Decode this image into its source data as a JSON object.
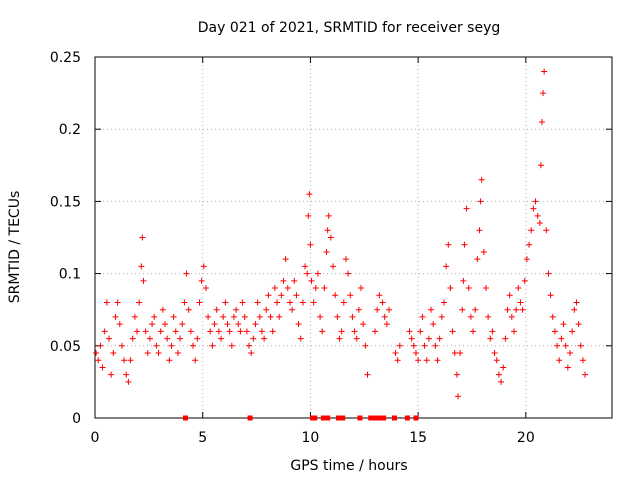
{
  "chart_data": {
    "type": "scatter",
    "title": "Day 021 of 2021, SRMTID for receiver seyg",
    "xlabel": "GPS time / hours",
    "ylabel": "SRMTID / TECUs",
    "xlim": [
      0,
      24
    ],
    "ylim": [
      0,
      0.25
    ],
    "xticks": [
      0,
      5,
      10,
      15,
      20
    ],
    "xtick_labels": [
      "0",
      "5",
      "10",
      "15",
      "20"
    ],
    "yticks": [
      0,
      0.05,
      0.1,
      0.15,
      0.2,
      0.25
    ],
    "ytick_labels": [
      "0",
      "0.05",
      "0.1",
      "0.15",
      "0.2",
      "0.25"
    ],
    "grid": true,
    "marker": "+",
    "color": "#ff0000",
    "series": [
      {
        "name": "SRMTID",
        "points": [
          [
            0.05,
            0.045
          ],
          [
            0.15,
            0.04
          ],
          [
            0.25,
            0.05
          ],
          [
            0.35,
            0.035
          ],
          [
            0.45,
            0.06
          ],
          [
            0.55,
            0.08
          ],
          [
            0.65,
            0.055
          ],
          [
            0.75,
            0.03
          ],
          [
            0.85,
            0.045
          ],
          [
            0.95,
            0.07
          ],
          [
            1.05,
            0.08
          ],
          [
            1.15,
            0.065
          ],
          [
            1.25,
            0.05
          ],
          [
            1.35,
            0.04
          ],
          [
            1.45,
            0.03
          ],
          [
            1.55,
            0.025
          ],
          [
            1.65,
            0.04
          ],
          [
            1.75,
            0.055
          ],
          [
            1.85,
            0.07
          ],
          [
            1.95,
            0.06
          ],
          [
            2.05,
            0.08
          ],
          [
            2.15,
            0.105
          ],
          [
            2.2,
            0.125
          ],
          [
            2.25,
            0.095
          ],
          [
            2.35,
            0.06
          ],
          [
            2.45,
            0.045
          ],
          [
            2.55,
            0.055
          ],
          [
            2.65,
            0.065
          ],
          [
            2.75,
            0.07
          ],
          [
            2.85,
            0.05
          ],
          [
            2.95,
            0.045
          ],
          [
            3.05,
            0.06
          ],
          [
            3.15,
            0.075
          ],
          [
            3.25,
            0.065
          ],
          [
            3.35,
            0.055
          ],
          [
            3.45,
            0.04
          ],
          [
            3.55,
            0.05
          ],
          [
            3.65,
            0.07
          ],
          [
            3.75,
            0.06
          ],
          [
            3.85,
            0.045
          ],
          [
            3.95,
            0.055
          ],
          [
            4.05,
            0.065
          ],
          [
            4.15,
            0.08
          ],
          [
            4.25,
            0.1
          ],
          [
            4.35,
            0.075
          ],
          [
            4.45,
            0.06
          ],
          [
            4.55,
            0.05
          ],
          [
            4.65,
            0.04
          ],
          [
            4.75,
            0.055
          ],
          [
            4.85,
            0.08
          ],
          [
            4.95,
            0.095
          ],
          [
            5.05,
            0.105
          ],
          [
            5.15,
            0.09
          ],
          [
            5.25,
            0.07
          ],
          [
            5.35,
            0.06
          ],
          [
            5.45,
            0.05
          ],
          [
            5.55,
            0.065
          ],
          [
            5.65,
            0.075
          ],
          [
            5.75,
            0.06
          ],
          [
            5.85,
            0.055
          ],
          [
            5.95,
            0.07
          ],
          [
            6.05,
            0.08
          ],
          [
            6.15,
            0.065
          ],
          [
            6.25,
            0.06
          ],
          [
            6.35,
            0.05
          ],
          [
            6.45,
            0.07
          ],
          [
            6.55,
            0.075
          ],
          [
            6.65,
            0.065
          ],
          [
            6.75,
            0.06
          ],
          [
            6.85,
            0.08
          ],
          [
            6.95,
            0.07
          ],
          [
            7.05,
            0.06
          ],
          [
            7.15,
            0.05
          ],
          [
            7.25,
            0.045
          ],
          [
            7.35,
            0.055
          ],
          [
            7.45,
            0.065
          ],
          [
            7.55,
            0.08
          ],
          [
            7.65,
            0.07
          ],
          [
            7.75,
            0.06
          ],
          [
            7.85,
            0.055
          ],
          [
            7.95,
            0.075
          ],
          [
            8.05,
            0.085
          ],
          [
            8.15,
            0.07
          ],
          [
            8.25,
            0.06
          ],
          [
            8.35,
            0.09
          ],
          [
            8.45,
            0.08
          ],
          [
            8.55,
            0.07
          ],
          [
            8.65,
            0.085
          ],
          [
            8.75,
            0.095
          ],
          [
            8.85,
            0.11
          ],
          [
            8.95,
            0.09
          ],
          [
            9.05,
            0.08
          ],
          [
            9.15,
            0.075
          ],
          [
            9.25,
            0.095
          ],
          [
            9.35,
            0.085
          ],
          [
            9.45,
            0.065
          ],
          [
            9.55,
            0.055
          ],
          [
            9.65,
            0.08
          ],
          [
            9.75,
            0.105
          ],
          [
            9.85,
            0.1
          ],
          [
            9.9,
            0.14
          ],
          [
            9.95,
            0.155
          ],
          [
            10.0,
            0.12
          ],
          [
            10.05,
            0.095
          ],
          [
            10.15,
            0.08
          ],
          [
            10.25,
            0.09
          ],
          [
            10.35,
            0.1
          ],
          [
            10.45,
            0.07
          ],
          [
            10.55,
            0.06
          ],
          [
            10.65,
            0.09
          ],
          [
            10.75,
            0.115
          ],
          [
            10.8,
            0.13
          ],
          [
            10.85,
            0.14
          ],
          [
            10.95,
            0.125
          ],
          [
            11.05,
            0.105
          ],
          [
            11.15,
            0.085
          ],
          [
            11.25,
            0.07
          ],
          [
            11.35,
            0.055
          ],
          [
            11.45,
            0.06
          ],
          [
            11.55,
            0.08
          ],
          [
            11.65,
            0.11
          ],
          [
            11.75,
            0.1
          ],
          [
            11.85,
            0.085
          ],
          [
            11.95,
            0.07
          ],
          [
            12.05,
            0.06
          ],
          [
            12.15,
            0.055
          ],
          [
            12.25,
            0.075
          ],
          [
            12.35,
            0.09
          ],
          [
            12.45,
            0.065
          ],
          [
            12.55,
            0.05
          ],
          [
            12.65,
            0.03
          ],
          [
            13.0,
            0.06
          ],
          [
            13.1,
            0.075
          ],
          [
            13.2,
            0.085
          ],
          [
            13.35,
            0.08
          ],
          [
            13.45,
            0.07
          ],
          [
            13.55,
            0.065
          ],
          [
            13.65,
            0.075
          ],
          [
            13.95,
            0.045
          ],
          [
            14.05,
            0.04
          ],
          [
            14.15,
            0.05
          ],
          [
            14.6,
            0.06
          ],
          [
            14.7,
            0.055
          ],
          [
            14.8,
            0.05
          ],
          [
            14.9,
            0.045
          ],
          [
            15.0,
            0.04
          ],
          [
            15.1,
            0.06
          ],
          [
            15.2,
            0.07
          ],
          [
            15.3,
            0.05
          ],
          [
            15.4,
            0.04
          ],
          [
            15.5,
            0.055
          ],
          [
            15.6,
            0.075
          ],
          [
            15.7,
            0.065
          ],
          [
            15.8,
            0.05
          ],
          [
            15.9,
            0.04
          ],
          [
            16.0,
            0.055
          ],
          [
            16.1,
            0.07
          ],
          [
            16.2,
            0.08
          ],
          [
            16.3,
            0.105
          ],
          [
            16.4,
            0.12
          ],
          [
            16.5,
            0.09
          ],
          [
            16.6,
            0.06
          ],
          [
            16.7,
            0.045
          ],
          [
            16.8,
            0.03
          ],
          [
            16.85,
            0.015
          ],
          [
            16.95,
            0.045
          ],
          [
            17.05,
            0.075
          ],
          [
            17.1,
            0.095
          ],
          [
            17.15,
            0.12
          ],
          [
            17.25,
            0.145
          ],
          [
            17.35,
            0.09
          ],
          [
            17.45,
            0.07
          ],
          [
            17.55,
            0.06
          ],
          [
            17.65,
            0.075
          ],
          [
            17.75,
            0.11
          ],
          [
            17.85,
            0.13
          ],
          [
            17.9,
            0.15
          ],
          [
            17.95,
            0.165
          ],
          [
            18.05,
            0.115
          ],
          [
            18.15,
            0.09
          ],
          [
            18.25,
            0.07
          ],
          [
            18.35,
            0.055
          ],
          [
            18.45,
            0.06
          ],
          [
            18.55,
            0.045
          ],
          [
            18.65,
            0.04
          ],
          [
            18.75,
            0.03
          ],
          [
            18.85,
            0.025
          ],
          [
            18.95,
            0.035
          ],
          [
            19.05,
            0.055
          ],
          [
            19.15,
            0.075
          ],
          [
            19.25,
            0.085
          ],
          [
            19.35,
            0.07
          ],
          [
            19.45,
            0.06
          ],
          [
            19.55,
            0.075
          ],
          [
            19.65,
            0.09
          ],
          [
            19.75,
            0.08
          ],
          [
            19.85,
            0.075
          ],
          [
            19.95,
            0.095
          ],
          [
            20.05,
            0.11
          ],
          [
            20.15,
            0.12
          ],
          [
            20.25,
            0.13
          ],
          [
            20.35,
            0.145
          ],
          [
            20.45,
            0.15
          ],
          [
            20.55,
            0.14
          ],
          [
            20.65,
            0.135
          ],
          [
            20.7,
            0.175
          ],
          [
            20.75,
            0.205
          ],
          [
            20.8,
            0.225
          ],
          [
            20.85,
            0.24
          ],
          [
            20.95,
            0.13
          ],
          [
            21.05,
            0.1
          ],
          [
            21.15,
            0.085
          ],
          [
            21.25,
            0.07
          ],
          [
            21.35,
            0.06
          ],
          [
            21.45,
            0.05
          ],
          [
            21.55,
            0.04
          ],
          [
            21.65,
            0.055
          ],
          [
            21.75,
            0.065
          ],
          [
            21.85,
            0.05
          ],
          [
            21.95,
            0.035
          ],
          [
            22.05,
            0.045
          ],
          [
            22.15,
            0.06
          ],
          [
            22.25,
            0.075
          ],
          [
            22.35,
            0.08
          ],
          [
            22.45,
            0.065
          ],
          [
            22.55,
            0.05
          ],
          [
            22.65,
            0.04
          ],
          [
            22.75,
            0.03
          ]
        ]
      }
    ],
    "zero_markers_x": [
      4.2,
      7.2,
      10.1,
      10.2,
      10.6,
      10.8,
      11.3,
      11.5,
      12.3,
      12.8,
      12.9,
      13.0,
      13.1,
      13.2,
      13.4,
      13.9,
      14.5,
      14.9
    ]
  }
}
